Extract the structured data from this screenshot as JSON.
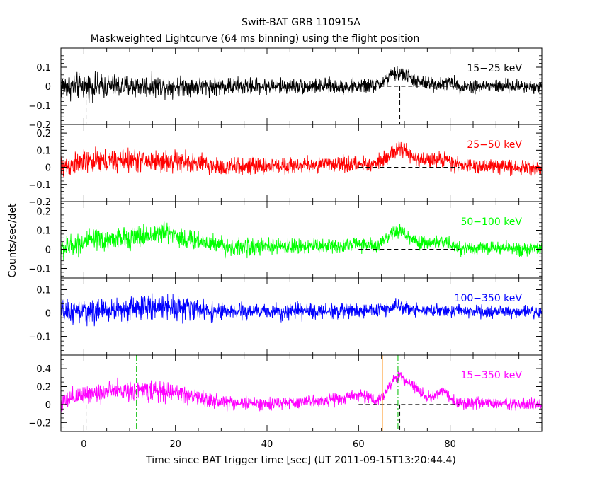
{
  "chart_data": {
    "type": "line",
    "title": "Swift-BAT GRB 110915A",
    "subtitle": "Maskweighted Lightcurve (64 ms binning) using the flight position",
    "xlabel": "Time since BAT trigger time [sec] (UT 2011-09-15T13:20:44.4)",
    "ylabel": "Counts/sec/det",
    "xlim": [
      -5,
      100
    ],
    "x_ticks": [
      0,
      20,
      40,
      60,
      80
    ],
    "bin_width_sec": 0.064,
    "panels": [
      {
        "name": "15-25 keV",
        "color": "#000000",
        "ylim": [
          -0.2,
          0.2
        ],
        "y_ticks": [
          0.1,
          0,
          -0.1,
          -0.2
        ],
        "y_tick_labels": [
          "0.1",
          "0",
          "−0.1",
          "−0.2"
        ],
        "noise_sigma": [
          [
            -5,
            0.06
          ],
          [
            20,
            0.045
          ],
          [
            40,
            0.035
          ],
          [
            100,
            0.03
          ]
        ],
        "profile": [
          [
            -5,
            0.0
          ],
          [
            63,
            0.0
          ],
          [
            65,
            0.015
          ],
          [
            67,
            0.055
          ],
          [
            69,
            0.07
          ],
          [
            71,
            0.05
          ],
          [
            73,
            0.02
          ],
          [
            78,
            0.01
          ],
          [
            80,
            0.02
          ],
          [
            82,
            0.0
          ],
          [
            100,
            0.0
          ]
        ]
      },
      {
        "name": "25-50 keV",
        "color": "#ff0000",
        "ylim": [
          -0.2,
          0.25
        ],
        "y_ticks": [
          0.2,
          0.1,
          0,
          -0.1,
          -0.2
        ],
        "y_tick_labels": [
          "0.2",
          "0.1",
          "0",
          "−0.1",
          "−0.2"
        ],
        "noise_sigma": [
          [
            -5,
            0.06
          ],
          [
            20,
            0.055
          ],
          [
            40,
            0.04
          ],
          [
            100,
            0.035
          ]
        ],
        "profile": [
          [
            -5,
            0.0
          ],
          [
            0,
            0.03
          ],
          [
            10,
            0.04
          ],
          [
            22,
            0.03
          ],
          [
            30,
            0.0
          ],
          [
            58,
            0.02
          ],
          [
            63,
            0.02
          ],
          [
            66,
            0.06
          ],
          [
            69,
            0.11
          ],
          [
            71,
            0.08
          ],
          [
            73,
            0.04
          ],
          [
            79,
            0.05
          ],
          [
            81,
            0.01
          ],
          [
            100,
            0.0
          ]
        ]
      },
      {
        "name": "50-100 keV",
        "color": "#00ff00",
        "ylim": [
          -0.15,
          0.25
        ],
        "y_ticks": [
          0.2,
          0.1,
          0,
          -0.1
        ],
        "y_tick_labels": [
          "0.2",
          "0.1",
          "0",
          "−0.1"
        ],
        "noise_sigma": [
          [
            -5,
            0.05
          ],
          [
            20,
            0.05
          ],
          [
            40,
            0.035
          ],
          [
            100,
            0.03
          ]
        ],
        "profile": [
          [
            -5,
            0.0
          ],
          [
            0,
            0.04
          ],
          [
            10,
            0.06
          ],
          [
            19,
            0.09
          ],
          [
            22,
            0.05
          ],
          [
            27,
            0.04
          ],
          [
            32,
            0.01
          ],
          [
            56,
            0.02
          ],
          [
            61,
            0.03
          ],
          [
            64,
            0.01
          ],
          [
            67,
            0.07
          ],
          [
            69,
            0.1
          ],
          [
            71,
            0.06
          ],
          [
            73,
            0.03
          ],
          [
            79,
            0.04
          ],
          [
            81,
            0.01
          ],
          [
            100,
            0.0
          ]
        ]
      },
      {
        "name": "100-350 keV",
        "color": "#0000ff",
        "ylim": [
          -0.18,
          0.15
        ],
        "y_ticks": [
          0.1,
          0,
          -0.1
        ],
        "y_tick_labels": [
          "0.1",
          "0",
          "−0.1"
        ],
        "noise_sigma": [
          [
            -5,
            0.045
          ],
          [
            20,
            0.045
          ],
          [
            30,
            0.03
          ],
          [
            100,
            0.022
          ]
        ],
        "profile": [
          [
            -5,
            0.0
          ],
          [
            8,
            0.015
          ],
          [
            19,
            0.03
          ],
          [
            22,
            0.02
          ],
          [
            30,
            0.005
          ],
          [
            60,
            0.01
          ],
          [
            66,
            0.015
          ],
          [
            69,
            0.03
          ],
          [
            72,
            0.015
          ],
          [
            80,
            0.01
          ],
          [
            100,
            0.0
          ]
        ]
      },
      {
        "name": "15-350 keV",
        "color": "#ff00ff",
        "ylim": [
          -0.3,
          0.55
        ],
        "y_ticks": [
          0.4,
          0.2,
          0,
          -0.2
        ],
        "y_tick_labels": [
          "0.4",
          "0.2",
          "0",
          "−0.2"
        ],
        "noise_sigma": [
          [
            -5,
            0.1
          ],
          [
            20,
            0.09
          ],
          [
            40,
            0.06
          ],
          [
            100,
            0.055
          ]
        ],
        "profile": [
          [
            -5,
            0.0
          ],
          [
            0,
            0.12
          ],
          [
            10,
            0.16
          ],
          [
            20,
            0.14
          ],
          [
            28,
            0.04
          ],
          [
            40,
            0.0
          ],
          [
            56,
            0.06
          ],
          [
            60,
            0.12
          ],
          [
            64,
            0.03
          ],
          [
            67,
            0.22
          ],
          [
            69,
            0.32
          ],
          [
            72,
            0.2
          ],
          [
            75,
            0.08
          ],
          [
            79,
            0.14
          ],
          [
            81,
            0.02
          ],
          [
            100,
            0.0
          ]
        ]
      }
    ],
    "markers": [
      {
        "label": "trigger",
        "x": 0.5,
        "color": "#000000",
        "style": "dash",
        "panels": "first_and_last"
      },
      {
        "label": "T90 start",
        "x": 11.5,
        "color": "#00bb00",
        "style": "dashdot",
        "panels": "last"
      },
      {
        "label": "T100 end",
        "x": 65.2,
        "color": "#ff8800",
        "style": "solid",
        "panels": "last"
      },
      {
        "label": "T90 end",
        "x": 68.6,
        "color": "#00bb00",
        "style": "dashdot",
        "panels": "last"
      },
      {
        "label": "trigger-window",
        "x": 69.0,
        "color": "#000000",
        "style": "dash",
        "panels": "first_and_last"
      }
    ],
    "grid": false,
    "legend": "none"
  }
}
